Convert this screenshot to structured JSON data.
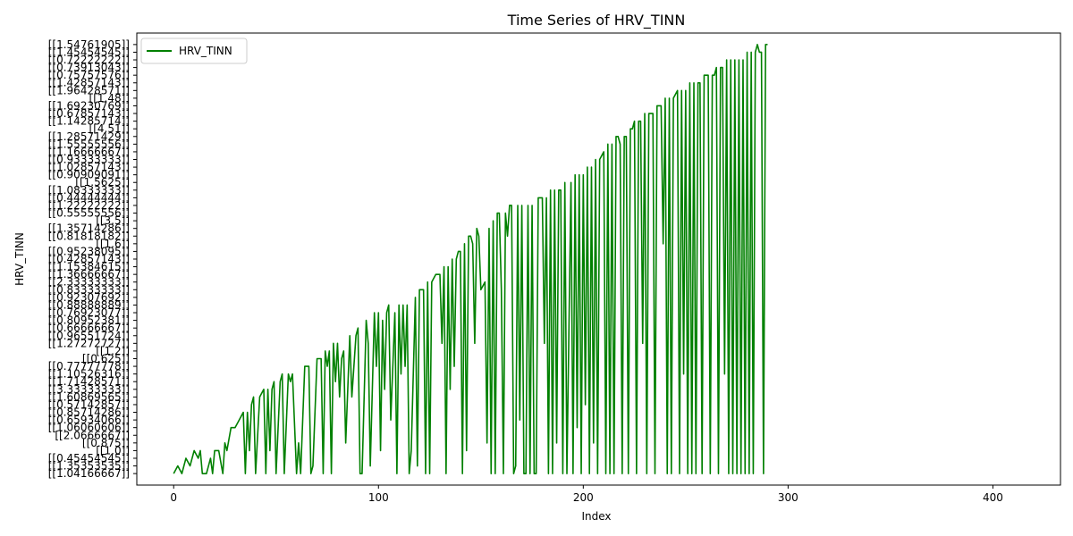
{
  "chart_data": {
    "type": "line",
    "title": "Time Series of HRV_TINN",
    "xlabel": "Index",
    "ylabel": "HRV_TINN",
    "xlim": [
      -18,
      433
    ],
    "ylim": [
      -1.5,
      57.5
    ],
    "xticks": [
      0,
      100,
      200,
      300,
      400
    ],
    "yticks": [
      {
        "v": 0,
        "label": "[[1.04166667]]"
      },
      {
        "v": 1,
        "label": "[[1.35353535]]"
      },
      {
        "v": 2,
        "label": "[[0.45454545]]"
      },
      {
        "v": 3,
        "label": "[[1.0]]"
      },
      {
        "v": 4,
        "label": "[[0.875]]"
      },
      {
        "v": 5,
        "label": "[[2.0666667]]"
      },
      {
        "v": 6,
        "label": "[[1.06060606]]"
      },
      {
        "v": 7,
        "label": "[[0.65934066]]"
      },
      {
        "v": 8,
        "label": "[[0.85714286]]"
      },
      {
        "v": 9,
        "label": "[[0.57142857]]"
      },
      {
        "v": 10,
        "label": "[[1.60869565]]"
      },
      {
        "v": 11,
        "label": "[[3.33333333]]"
      },
      {
        "v": 12,
        "label": "[[1.71428571]]"
      },
      {
        "v": 13,
        "label": "[[1.10526316]]"
      },
      {
        "v": 14,
        "label": "[[0.77777778]]"
      },
      {
        "v": 15,
        "label": "[[0.625]]"
      },
      {
        "v": 16,
        "label": "[[1.2]]"
      },
      {
        "v": 17,
        "label": "[[1.27272727]]"
      },
      {
        "v": 18,
        "label": "[[0.96551724]]"
      },
      {
        "v": 19,
        "label": "[[0.66666667]]"
      },
      {
        "v": 20,
        "label": "[[0.80952381]]"
      },
      {
        "v": 21,
        "label": "[[0.76923077]]"
      },
      {
        "v": 22,
        "label": "[[0.88888889]]"
      },
      {
        "v": 23,
        "label": "[[0.92307692]]"
      },
      {
        "v": 24,
        "label": "[[0.83333333]]"
      },
      {
        "v": 25,
        "label": "[[2.33333333]]"
      },
      {
        "v": 26,
        "label": "[[1.36666667]]"
      },
      {
        "v": 27,
        "label": "[[1.15384615]]"
      },
      {
        "v": 28,
        "label": "[[0.42857143]]"
      },
      {
        "v": 29,
        "label": "[[0.95238095]]"
      },
      {
        "v": 30,
        "label": "[[1.6]]"
      },
      {
        "v": 31,
        "label": "[[0.81818182]]"
      },
      {
        "v": 32,
        "label": "[[1.35714286]]"
      },
      {
        "v": 33,
        "label": "[[3.5]]"
      },
      {
        "v": 34,
        "label": "[[0.55555556]]"
      },
      {
        "v": 35,
        "label": "[[1.22222222]]"
      },
      {
        "v": 36,
        "label": "[[0.44444444]]"
      },
      {
        "v": 37,
        "label": "[[1.08333333]]"
      },
      {
        "v": 38,
        "label": "[[1.5625]]"
      },
      {
        "v": 39,
        "label": "[[0.90909091]]"
      },
      {
        "v": 40,
        "label": "[[1.02857143]]"
      },
      {
        "v": 41,
        "label": "[[0.93333333]]"
      },
      {
        "v": 42,
        "label": "[[1.16666667]]"
      },
      {
        "v": 43,
        "label": "[[1.55555556]]"
      },
      {
        "v": 44,
        "label": "[[1.28571429]]"
      },
      {
        "v": 45,
        "label": "[[4.51]]"
      },
      {
        "v": 46,
        "label": "[[1.14285714]]"
      },
      {
        "v": 47,
        "label": "[[0.67857143]]"
      },
      {
        "v": 48,
        "label": "[[1.69230769]]"
      },
      {
        "v": 49,
        "label": "[[1.48]]"
      },
      {
        "v": 50,
        "label": "[[1.96428571]]"
      },
      {
        "v": 51,
        "label": "[[1.42857143]]"
      },
      {
        "v": 52,
        "label": "[[0.75757576]]"
      },
      {
        "v": 53,
        "label": "[[0.73913043]]"
      },
      {
        "v": 54,
        "label": "[[0.72222222]]"
      },
      {
        "v": 55,
        "label": "[[1.45454545]]"
      },
      {
        "v": 56,
        "label": "[[1.54761905]]"
      }
    ],
    "series": [
      {
        "name": "HRV_TINN",
        "color": "#008000",
        "points": [
          [
            0,
            0
          ],
          [
            2,
            1
          ],
          [
            4,
            0
          ],
          [
            6,
            2
          ],
          [
            8,
            1
          ],
          [
            10,
            3
          ],
          [
            12,
            2
          ],
          [
            13,
            3
          ],
          [
            14,
            0
          ],
          [
            16,
            0
          ],
          [
            17,
            1
          ],
          [
            18,
            2
          ],
          [
            19,
            0
          ],
          [
            20,
            3
          ],
          [
            22,
            3
          ],
          [
            24,
            0
          ],
          [
            25,
            4
          ],
          [
            26,
            3
          ],
          [
            28,
            6
          ],
          [
            30,
            6
          ],
          [
            32,
            7
          ],
          [
            34,
            8
          ],
          [
            35,
            0
          ],
          [
            36,
            8
          ],
          [
            37,
            3
          ],
          [
            38,
            9
          ],
          [
            39,
            10
          ],
          [
            40,
            0
          ],
          [
            42,
            10
          ],
          [
            44,
            11
          ],
          [
            45,
            0
          ],
          [
            46,
            11
          ],
          [
            47,
            3
          ],
          [
            48,
            11
          ],
          [
            49,
            12
          ],
          [
            50,
            0
          ],
          [
            52,
            12
          ],
          [
            53,
            13
          ],
          [
            54,
            0
          ],
          [
            56,
            13
          ],
          [
            57,
            12
          ],
          [
            58,
            13
          ],
          [
            60,
            0
          ],
          [
            61,
            4
          ],
          [
            62,
            0
          ],
          [
            64,
            14
          ],
          [
            66,
            14
          ],
          [
            67,
            0
          ],
          [
            68,
            1
          ],
          [
            70,
            15
          ],
          [
            72,
            15
          ],
          [
            73,
            0
          ],
          [
            74,
            16
          ],
          [
            75,
            14
          ],
          [
            76,
            16
          ],
          [
            77,
            0
          ],
          [
            78,
            17
          ],
          [
            79,
            12
          ],
          [
            80,
            17
          ],
          [
            81,
            10
          ],
          [
            82,
            15
          ],
          [
            83,
            16
          ],
          [
            84,
            4
          ],
          [
            86,
            18
          ],
          [
            87,
            10
          ],
          [
            88,
            14
          ],
          [
            89,
            18
          ],
          [
            90,
            19
          ],
          [
            91,
            0
          ],
          [
            92,
            0
          ],
          [
            94,
            20
          ],
          [
            95,
            17
          ],
          [
            96,
            1
          ],
          [
            98,
            21
          ],
          [
            99,
            14
          ],
          [
            100,
            21
          ],
          [
            101,
            3
          ],
          [
            102,
            20
          ],
          [
            103,
            11
          ],
          [
            104,
            21
          ],
          [
            105,
            22
          ],
          [
            106,
            7
          ],
          [
            108,
            21
          ],
          [
            109,
            0
          ],
          [
            110,
            22
          ],
          [
            111,
            13
          ],
          [
            112,
            22
          ],
          [
            113,
            14
          ],
          [
            114,
            22
          ],
          [
            115,
            0
          ],
          [
            116,
            3
          ],
          [
            118,
            23
          ],
          [
            119,
            1
          ],
          [
            120,
            24
          ],
          [
            122,
            24
          ],
          [
            123,
            0
          ],
          [
            124,
            25
          ],
          [
            125,
            0
          ],
          [
            126,
            25
          ],
          [
            128,
            26
          ],
          [
            130,
            26
          ],
          [
            131,
            17
          ],
          [
            132,
            27
          ],
          [
            133,
            0
          ],
          [
            134,
            27
          ],
          [
            135,
            11
          ],
          [
            136,
            28
          ],
          [
            137,
            14
          ],
          [
            138,
            28
          ],
          [
            139,
            29
          ],
          [
            140,
            29
          ],
          [
            141,
            0
          ],
          [
            142,
            30
          ],
          [
            143,
            3
          ],
          [
            144,
            31
          ],
          [
            145,
            31
          ],
          [
            146,
            30
          ],
          [
            147,
            17
          ],
          [
            148,
            32
          ],
          [
            149,
            31
          ],
          [
            150,
            24
          ],
          [
            152,
            25
          ],
          [
            153,
            4
          ],
          [
            154,
            32
          ],
          [
            155,
            0
          ],
          [
            156,
            33
          ],
          [
            157,
            0
          ],
          [
            158,
            34
          ],
          [
            159,
            34
          ],
          [
            160,
            24
          ],
          [
            161,
            0
          ],
          [
            162,
            34
          ],
          [
            163,
            31
          ],
          [
            164,
            35
          ],
          [
            165,
            35
          ],
          [
            166,
            0
          ],
          [
            167,
            1
          ],
          [
            168,
            35
          ],
          [
            169,
            7
          ],
          [
            170,
            35
          ],
          [
            171,
            0
          ],
          [
            172,
            0
          ],
          [
            173,
            35
          ],
          [
            174,
            0
          ],
          [
            175,
            35
          ],
          [
            176,
            0
          ],
          [
            177,
            0
          ],
          [
            178,
            36
          ],
          [
            179,
            36
          ],
          [
            180,
            36
          ],
          [
            181,
            17
          ],
          [
            182,
            36
          ],
          [
            183,
            0
          ],
          [
            184,
            37
          ],
          [
            185,
            0
          ],
          [
            186,
            37
          ],
          [
            187,
            4
          ],
          [
            188,
            37
          ],
          [
            189,
            37
          ],
          [
            190,
            0
          ],
          [
            191,
            38
          ],
          [
            192,
            0
          ],
          [
            194,
            38
          ],
          [
            195,
            0
          ],
          [
            196,
            39
          ],
          [
            197,
            6
          ],
          [
            198,
            39
          ],
          [
            199,
            0
          ],
          [
            200,
            39
          ],
          [
            201,
            9
          ],
          [
            202,
            40
          ],
          [
            203,
            0
          ],
          [
            204,
            40
          ],
          [
            205,
            4
          ],
          [
            206,
            41
          ],
          [
            207,
            0
          ],
          [
            208,
            41
          ],
          [
            210,
            42
          ],
          [
            211,
            0
          ],
          [
            212,
            43
          ],
          [
            213,
            0
          ],
          [
            214,
            43
          ],
          [
            215,
            0
          ],
          [
            216,
            44
          ],
          [
            217,
            44
          ],
          [
            218,
            43
          ],
          [
            219,
            0
          ],
          [
            220,
            44
          ],
          [
            221,
            44
          ],
          [
            222,
            0
          ],
          [
            223,
            45
          ],
          [
            224,
            45
          ],
          [
            225,
            46
          ],
          [
            226,
            0
          ],
          [
            227,
            46
          ],
          [
            228,
            46
          ],
          [
            229,
            17
          ],
          [
            230,
            47
          ],
          [
            231,
            0
          ],
          [
            232,
            47
          ],
          [
            233,
            47
          ],
          [
            234,
            47
          ],
          [
            235,
            0
          ],
          [
            236,
            48
          ],
          [
            238,
            48
          ],
          [
            239,
            30
          ],
          [
            240,
            49
          ],
          [
            241,
            0
          ],
          [
            242,
            49
          ],
          [
            243,
            0
          ],
          [
            244,
            49
          ],
          [
            246,
            50
          ],
          [
            247,
            0
          ],
          [
            248,
            50
          ],
          [
            249,
            13
          ],
          [
            250,
            50
          ],
          [
            251,
            0
          ],
          [
            252,
            51
          ],
          [
            253,
            0
          ],
          [
            254,
            51
          ],
          [
            255,
            0
          ],
          [
            256,
            51
          ],
          [
            257,
            51
          ],
          [
            258,
            0
          ],
          [
            259,
            52
          ],
          [
            260,
            52
          ],
          [
            261,
            52
          ],
          [
            262,
            0
          ],
          [
            263,
            52
          ],
          [
            264,
            52
          ],
          [
            265,
            53
          ],
          [
            266,
            0
          ],
          [
            267,
            53
          ],
          [
            268,
            53
          ],
          [
            269,
            13
          ],
          [
            270,
            54
          ],
          [
            271,
            0
          ],
          [
            272,
            54
          ],
          [
            273,
            0
          ],
          [
            274,
            54
          ],
          [
            275,
            0
          ],
          [
            276,
            54
          ],
          [
            277,
            0
          ],
          [
            278,
            54
          ],
          [
            279,
            0
          ],
          [
            280,
            55
          ],
          [
            281,
            0
          ],
          [
            282,
            55
          ],
          [
            283,
            0
          ],
          [
            284,
            55
          ],
          [
            285,
            56
          ],
          [
            286,
            55
          ],
          [
            287,
            55
          ],
          [
            288,
            0
          ],
          [
            289,
            56
          ],
          [
            290,
            56
          ]
        ]
      }
    ],
    "legend": {
      "label": "HRV_TINN",
      "position": "top-left"
    }
  }
}
